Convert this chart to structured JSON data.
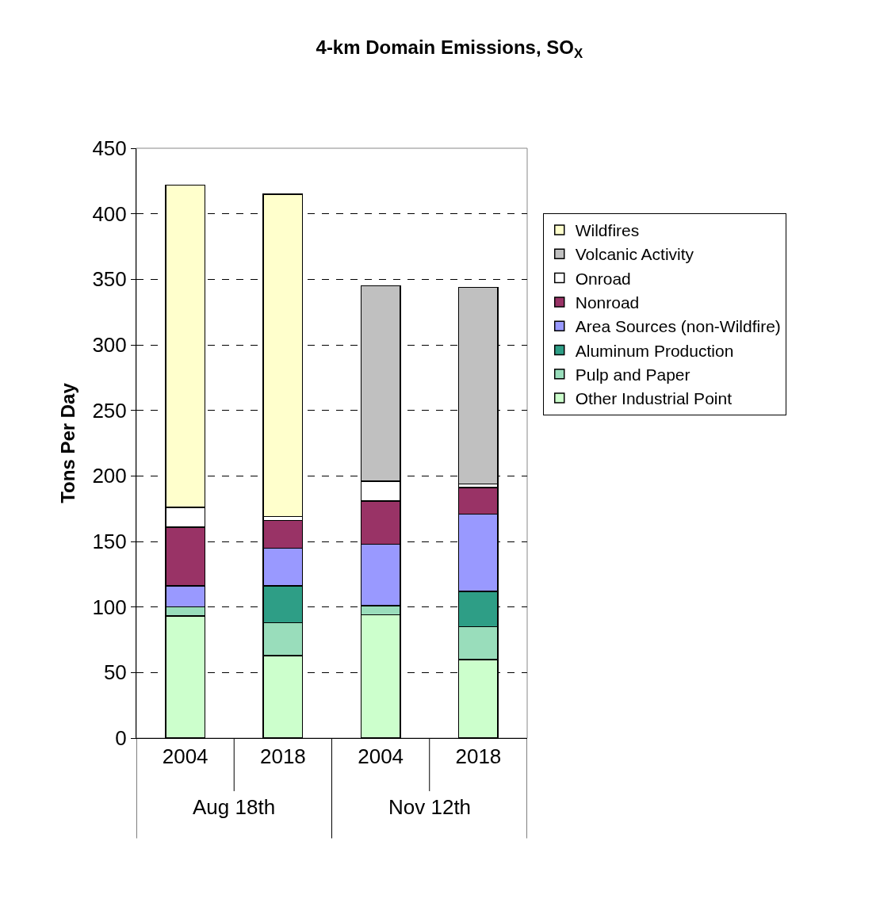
{
  "chart_data": {
    "type": "bar",
    "title": "4-km Domain Emissions, SO$_{X}$",
    "ylabel": "Tons Per Day",
    "categories": [
      "2004",
      "2018",
      "2004",
      "2018"
    ],
    "annotations": [
      "Aug 18th",
      "Nov 12th"
    ],
    "stacked": true,
    "ylim": [
      0,
      450
    ],
    "yticks": [
      0,
      50,
      100,
      150,
      200,
      250,
      300,
      350,
      400,
      450
    ],
    "grid": "y",
    "legend": "right",
    "series": [
      {
        "name": "Other Industrial Point",
        "color": "#ccffcc",
        "values": [
          93,
          63,
          94,
          60
        ]
      },
      {
        "name": "Pulp and Paper",
        "color": "#99ddbb",
        "values": [
          7,
          25,
          7,
          25
        ]
      },
      {
        "name": "Aluminum Production",
        "color": "#2e9e86",
        "values": [
          null,
          28,
          null,
          27
        ]
      },
      {
        "name": "Area Sources (non-Wildfire)",
        "color": "#9999ff",
        "values": [
          16,
          29,
          47,
          59
        ]
      },
      {
        "name": "Nonroad",
        "color": "#993366",
        "values": [
          45,
          21,
          33,
          20
        ]
      },
      {
        "name": "Onroad",
        "color": "#ffffff",
        "values": [
          15,
          3,
          15,
          3
        ]
      },
      {
        "name": "Volcanic Activity",
        "color": "#c0c0c0",
        "values": [
          null,
          null,
          149,
          150
        ]
      },
      {
        "name": "Wildfires",
        "color": "#ffffcc",
        "values": [
          246,
          246,
          null,
          null
        ]
      }
    ]
  }
}
